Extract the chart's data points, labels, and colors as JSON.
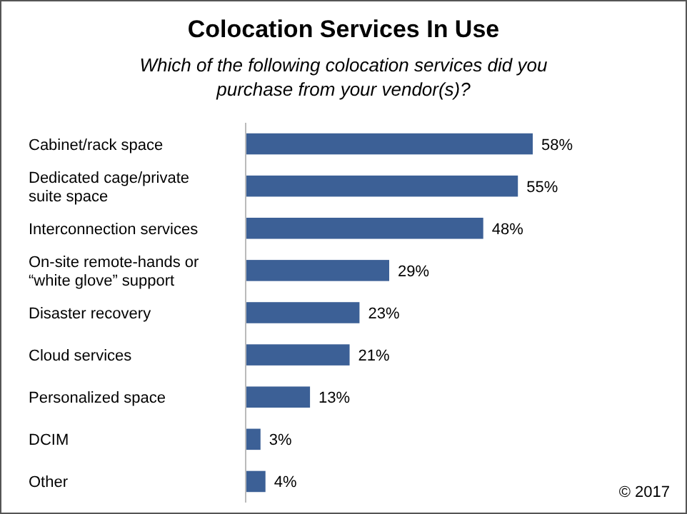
{
  "chart_data": {
    "type": "bar",
    "orientation": "horizontal",
    "title": "Colocation Services In Use",
    "subtitle": "Which of the following colocation services did you purchase from your vendor(s)?",
    "categories": [
      "Cabinet/rack space",
      "Dedicated cage/private suite space",
      "Interconnection services",
      "On-site remote-hands or “white glove” support",
      "Disaster recovery",
      "Cloud services",
      "Personalized space",
      "DCIM",
      "Other"
    ],
    "values": [
      58,
      55,
      48,
      29,
      23,
      21,
      13,
      3,
      4
    ],
    "value_labels": [
      "58%",
      "55%",
      "48%",
      "29%",
      "23%",
      "21%",
      "13%",
      "3%",
      "4%"
    ],
    "color": "#3c6096",
    "annotations": [
      "© 2017"
    ]
  }
}
